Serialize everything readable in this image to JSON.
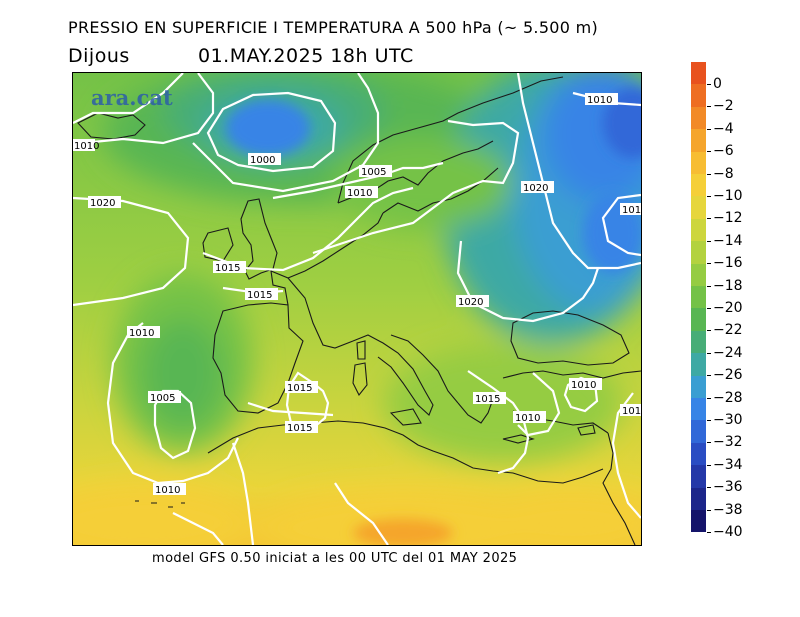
{
  "header": {
    "title": "PRESSIO EN SUPERFICIE I TEMPERATURA A 500 hPa (~ 5.500 m)",
    "day": "Dijous",
    "datetime": "01.MAY.2025 18h UTC"
  },
  "map": {
    "brand": "ara.cat",
    "isobar_labels": [
      "1010",
      "1010",
      "1000",
      "1005",
      "1010",
      "1020",
      "1020",
      "101",
      "1015",
      "1015",
      "1020",
      "1010",
      "1005",
      "1015",
      "1015",
      "1015",
      "1010",
      "1010",
      "101",
      "1010"
    ]
  },
  "footer": "model GFS 0.50 iniciat a les 00 UTC del 01 MAY 2025",
  "scale": {
    "labels": [
      "0",
      "-2",
      "-4",
      "-6",
      "-8",
      "-10",
      "-12",
      "-14",
      "-16",
      "-18",
      "-20",
      "-22",
      "-24",
      "-26",
      "-28",
      "-30",
      "-32",
      "-34",
      "-36",
      "-38",
      "-40"
    ],
    "colors": [
      "#e8521e",
      "#ee6e22",
      "#f28a27",
      "#f5a52c",
      "#f7bd33",
      "#f5cf38",
      "#e6d63c",
      "#cdd63d",
      "#b3d23f",
      "#95cc42",
      "#74c247",
      "#58b653",
      "#47ad77",
      "#3ea9a4",
      "#3a9ed2",
      "#3784e6",
      "#3168d8",
      "#2a4dc3",
      "#2438a8",
      "#1c268a",
      "#15146a"
    ],
    "unit": ""
  }
}
